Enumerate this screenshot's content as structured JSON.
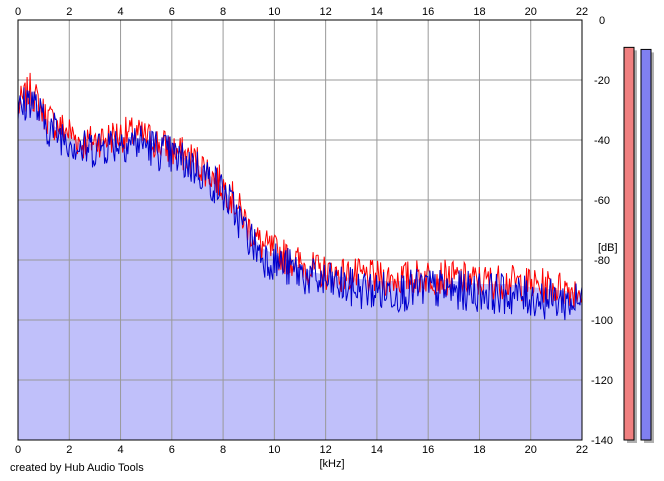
{
  "credit": "created by Hub Audio Tools",
  "chart_data": {
    "type": "line",
    "title": "",
    "xlabel": "[kHz]",
    "ylabel": "[dB]",
    "xlim": [
      0,
      22
    ],
    "ylim": [
      -140,
      0
    ],
    "x_ticks": [
      0,
      2,
      4,
      6,
      8,
      10,
      12,
      14,
      16,
      18,
      20,
      22
    ],
    "y_ticks": [
      0,
      -20,
      -40,
      -60,
      -80,
      -100,
      -120,
      -140
    ],
    "x_tick_labels_top": [
      "0",
      "2",
      "4",
      "6",
      "8",
      "10",
      "12",
      "14",
      "16",
      "18",
      "20",
      "22"
    ],
    "x_tick_labels_bottom": [
      "0",
      "2",
      "4",
      "6",
      "8",
      "10",
      "12",
      "14",
      "16",
      "18",
      "20",
      "22"
    ],
    "y_tick_labels": [
      "0",
      "-20",
      "-40",
      "-60",
      "-80",
      "-100",
      "-120",
      "-140"
    ],
    "grid": true,
    "colors": {
      "left": "#ff0000",
      "right": "#0000cc",
      "fill": "#c0c0fa",
      "meter_left": "#f08080",
      "meter_right": "#8080f0"
    },
    "series": [
      {
        "x": [
          0,
          0.5,
          1,
          1.5,
          2,
          2.5,
          3,
          3.5,
          4,
          4.5,
          5,
          5.5,
          6,
          6.5,
          7,
          7.5,
          8,
          8.5,
          9,
          9.5,
          10,
          10.5,
          11,
          11.5,
          12,
          13,
          14,
          15,
          16,
          17,
          18,
          19,
          20,
          21,
          22
        ],
        "values": [
          -28,
          -22,
          -30,
          -34,
          -36,
          -40,
          -39,
          -38,
          -37,
          -37,
          -38,
          -40,
          -42,
          -44,
          -46,
          -50,
          -54,
          -60,
          -68,
          -74,
          -76,
          -78,
          -80,
          -82,
          -83,
          -84,
          -85,
          -85,
          -84,
          -85,
          -86,
          -86,
          -87,
          -88,
          -89
        ]
      },
      {
        "x": [
          0,
          0.5,
          1,
          1.5,
          2,
          2.5,
          3,
          3.5,
          4,
          4.5,
          5,
          5.5,
          6,
          6.5,
          7,
          7.5,
          8,
          8.5,
          9,
          9.5,
          10,
          10.5,
          11,
          11.5,
          12,
          13,
          14,
          15,
          16,
          17,
          18,
          19,
          20,
          21,
          22
        ],
        "values": [
          -30,
          -24,
          -33,
          -36,
          -38,
          -42,
          -41,
          -40,
          -39,
          -39,
          -40,
          -42,
          -44,
          -46,
          -48,
          -52,
          -56,
          -63,
          -71,
          -77,
          -79,
          -81,
          -83,
          -85,
          -86,
          -88,
          -89,
          -89,
          -88,
          -89,
          -89,
          -90,
          -91,
          -92,
          -93
        ]
      }
    ],
    "meters": [
      {
        "min_db": -140,
        "max_db": 0,
        "level_db": -6
      },
      {
        "min_db": -140,
        "max_db": 0,
        "level_db": -7
      }
    ]
  }
}
